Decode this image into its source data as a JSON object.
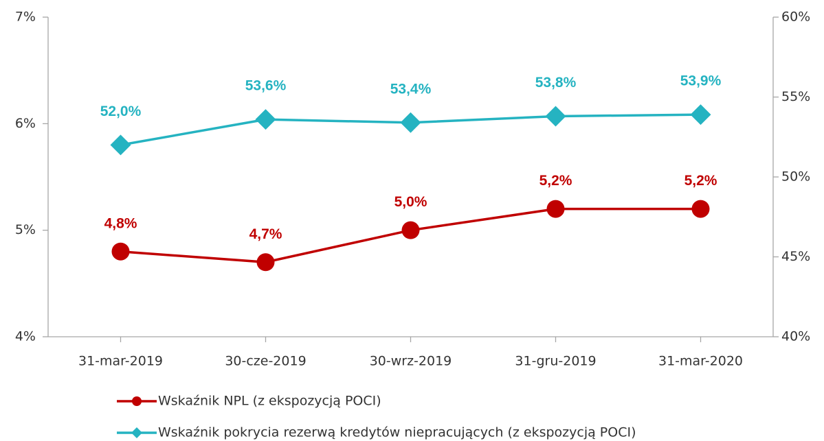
{
  "chart_data": {
    "type": "line",
    "categories": [
      "31-mar-2019",
      "30-cze-2019",
      "30-wrz-2019",
      "31-gru-2019",
      "31-mar-2020"
    ],
    "series": [
      {
        "name": "Wskaźnik NPL (z ekspozycją POCI)",
        "color": "#c00000",
        "marker": "circle",
        "values": [
          4.8,
          4.7,
          5.0,
          5.2,
          5.2
        ],
        "value_labels": [
          "4,8%",
          "4,7%",
          "5,0%",
          "5,2%",
          "5,2%"
        ]
      },
      {
        "name": "Wskaźnik pokrycia rezerwą kredytów niepracujących (z ekspozycją POCI)",
        "color": "#25b3c1",
        "marker": "diamond",
        "axis": "y2",
        "values": [
          52.0,
          53.6,
          53.4,
          53.8,
          53.9
        ],
        "value_labels": [
          "52,0%",
          "53,6%",
          "53,4%",
          "53,8%",
          "53,9%"
        ]
      }
    ],
    "ylim": [
      4,
      7
    ],
    "yticks": [
      {
        "value": 4,
        "label": "4%"
      },
      {
        "value": 5,
        "label": "5%"
      },
      {
        "value": 6,
        "label": "6%"
      },
      {
        "value": 7,
        "label": "7%"
      }
    ],
    "y2lim": [
      40,
      60
    ],
    "y2ticks": [
      {
        "value": 40,
        "label": "40%"
      },
      {
        "value": 45,
        "label": "45%"
      },
      {
        "value": 50,
        "label": "50%"
      },
      {
        "value": 55,
        "label": "55%"
      },
      {
        "value": 60,
        "label": "60%"
      }
    ],
    "grid": false,
    "legend": "bottom"
  }
}
